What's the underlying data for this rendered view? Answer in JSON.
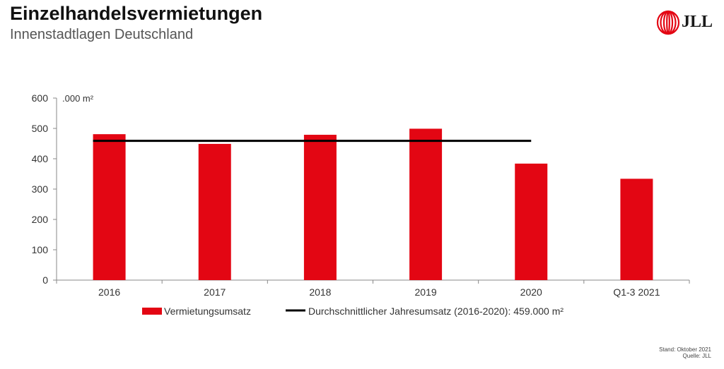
{
  "header": {
    "title": "Einzelhandelsvermietungen",
    "subtitle": "Innenstadtlagen Deutschland"
  },
  "brand": {
    "logo_text": "JLL",
    "logo_icon": "jll-logo-icon",
    "color": "#e30613"
  },
  "footer": {
    "stand": "Stand: Oktober 2021",
    "quelle": "Quelle: JLL"
  },
  "chart_data": {
    "type": "bar",
    "categories": [
      "2016",
      "2017",
      "2018",
      "2019",
      "2020",
      "Q1-3 2021"
    ],
    "series": [
      {
        "name": "Vermietungsumsatz",
        "values": [
          481,
          449,
          479,
          499,
          384,
          334
        ],
        "color": "#e30613"
      }
    ],
    "reference_line": {
      "name": "Durchschnittlicher Jahresumsatz (2016-2020): 459.000 m²",
      "value": 459,
      "from_category": "2016",
      "to_category": "2020",
      "color": "#000000"
    },
    "unit_label": ".000 m²",
    "ylim": [
      0,
      600
    ],
    "yticks": [
      0,
      100,
      200,
      300,
      400,
      500,
      600
    ],
    "grid": false,
    "legend": "bottom"
  }
}
